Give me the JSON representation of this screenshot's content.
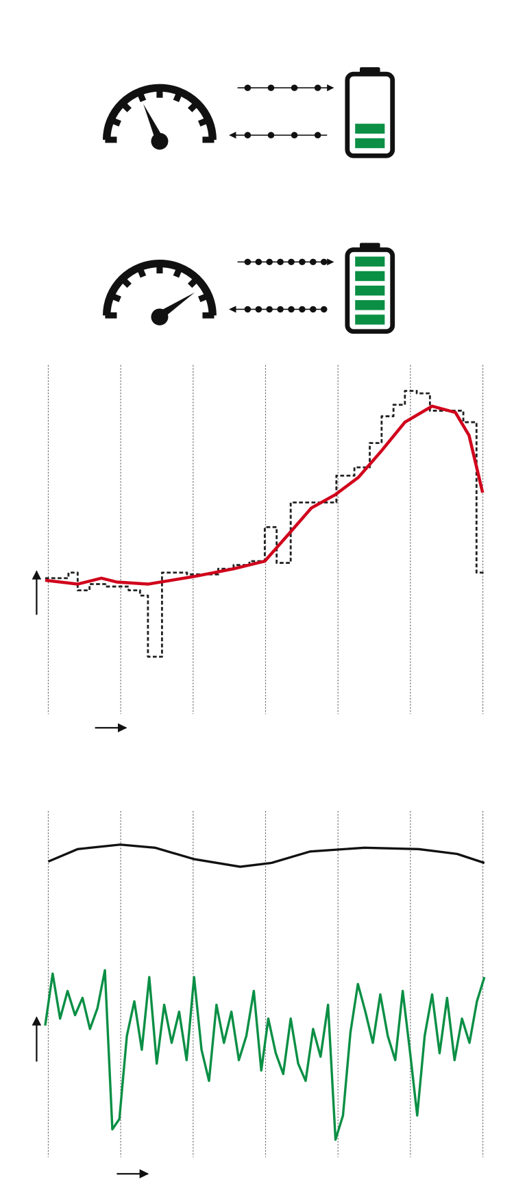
{
  "chart_data": [
    {
      "type": "line",
      "xlim": [
        0,
        100
      ],
      "ylim": [
        0,
        100
      ],
      "series": [
        {
          "color": "#222222",
          "step": true,
          "dashed": true,
          "x": [
            0,
            5.3,
            7.4,
            10.1,
            13.7,
            19.0,
            21.6,
            23.4,
            26.6,
            32.3,
            39.4,
            42.9,
            46.5,
            50.0,
            52.7,
            55.9,
            66.3,
            70.4,
            73.9,
            76.6,
            79.3,
            81.9,
            84.6,
            87.6,
            95.2,
            98.2,
            100
          ],
          "values": [
            39.1,
            40.7,
            35.6,
            37.4,
            36.7,
            35.6,
            34.1,
            16.5,
            40.7,
            40.2,
            41.8,
            42.9,
            44.0,
            53.8,
            43.5,
            60.9,
            68.6,
            71.0,
            78.0,
            85.7,
            89.0,
            93.0,
            92.3,
            87.3,
            84.0,
            40.7,
            40.7
          ]
        },
        {
          "color": "#d0021b",
          "step": false,
          "dashed": false,
          "x": [
            0,
            7.4,
            12.8,
            16.3,
            23.4,
            34.0,
            42.9,
            50.0,
            55.3,
            60.6,
            66.0,
            71.3,
            76.6,
            81.9,
            88.1,
            93.4,
            96.5,
            99.6
          ],
          "values": [
            38.5,
            37.4,
            39.1,
            38.0,
            37.4,
            39.6,
            41.8,
            44.0,
            51.6,
            59.3,
            63.1,
            68.1,
            75.8,
            84.0,
            88.6,
            86.8,
            80.2,
            63.7
          ]
        }
      ]
    },
    {
      "type": "line",
      "xlim": [
        0,
        100
      ],
      "ylim": [
        0,
        100
      ],
      "series": [
        {
          "color": "#111111",
          "step": false,
          "dashed": false,
          "x": [
            0.7,
            7.4,
            17.1,
            25.0,
            33.9,
            44.4,
            51.5,
            60.3,
            72.7,
            85.0,
            93.8,
            100
          ],
          "values": [
            85.4,
            89.0,
            90.3,
            89.4,
            86.1,
            83.9,
            85.0,
            88.3,
            89.4,
            89.0,
            87.6,
            85.0
          ]
        },
        {
          "color": "#0a8f45",
          "step": false,
          "dashed": false,
          "x": [
            0,
            1.7,
            3.4,
            5.1,
            6.8,
            8.5,
            10.2,
            11.9,
            13.6,
            15.3,
            16.9,
            18.6,
            20.3,
            22.0,
            23.7,
            25.4,
            27.1,
            28.8,
            30.5,
            32.2,
            33.9,
            35.6,
            37.3,
            39.0,
            40.7,
            42.4,
            44.1,
            45.8,
            47.5,
            49.2,
            50.8,
            52.5,
            54.2,
            55.9,
            57.6,
            59.3,
            61.0,
            62.7,
            64.4,
            66.1,
            67.8,
            69.5,
            71.2,
            72.9,
            74.6,
            76.3,
            78.0,
            79.7,
            81.4,
            83.1,
            84.7,
            86.4,
            88.1,
            89.8,
            91.5,
            93.2,
            94.9,
            96.6,
            98.3,
            100
          ],
          "values": [
            38,
            53,
            40,
            48,
            41,
            46,
            37,
            43,
            54,
            8,
            11,
            35,
            45,
            31,
            52,
            27,
            44,
            33,
            42,
            28,
            52,
            31,
            22,
            44,
            33,
            42,
            28,
            35,
            48,
            25,
            40,
            30,
            24,
            40,
            27,
            22,
            37,
            29,
            44,
            5,
            12,
            36,
            50,
            42,
            33,
            47,
            35,
            28,
            48,
            30,
            12,
            35,
            47,
            30,
            46,
            28,
            40,
            33,
            45,
            52
          ]
        }
      ]
    }
  ]
}
